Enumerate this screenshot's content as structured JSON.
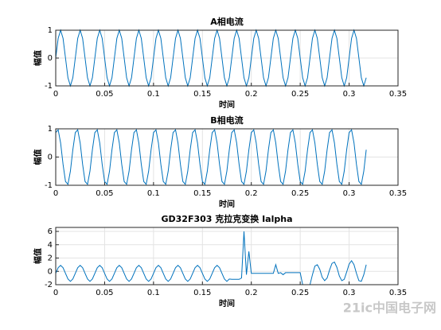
{
  "chart_data": [
    {
      "type": "line",
      "title": "A相电流",
      "xlabel": "时间",
      "ylabel": "幅值",
      "color": "#0072bd",
      "grid": true,
      "xlim": [
        0,
        0.35
      ],
      "xticks": [
        0,
        0.05,
        0.1,
        0.15,
        0.2,
        0.25,
        0.3,
        0.35
      ],
      "ylim": [
        -1,
        1
      ],
      "yticks": [
        -1,
        0,
        1
      ],
      "x": [
        0,
        0.0025,
        0.005,
        0.0075,
        0.01,
        0.0125,
        0.015,
        0.0175,
        0.02,
        0.0225,
        0.025,
        0.0275,
        0.03,
        0.0325,
        0.035,
        0.0375,
        0.04,
        0.0425,
        0.045,
        0.0475,
        0.05,
        0.0525,
        0.055,
        0.0575,
        0.06,
        0.0625,
        0.065,
        0.0675,
        0.07,
        0.0725,
        0.075,
        0.0775,
        0.08,
        0.0825,
        0.085,
        0.0875,
        0.09,
        0.0925,
        0.095,
        0.0975,
        0.1,
        0.1025,
        0.105,
        0.1075,
        0.11,
        0.1125,
        0.115,
        0.1175,
        0.12,
        0.1225,
        0.125,
        0.1275,
        0.13,
        0.1325,
        0.135,
        0.1375,
        0.14,
        0.1425,
        0.145,
        0.1475,
        0.15,
        0.1525,
        0.155,
        0.1575,
        0.16,
        0.1625,
        0.165,
        0.1675,
        0.17,
        0.1725,
        0.175,
        0.1775,
        0.18,
        0.1825,
        0.185,
        0.1875,
        0.19,
        0.1925,
        0.195,
        0.1975,
        0.2,
        0.2025,
        0.205,
        0.2075,
        0.21,
        0.2125,
        0.215,
        0.2175,
        0.22,
        0.2225,
        0.225,
        0.2275,
        0.23,
        0.2325,
        0.235,
        0.2375,
        0.24,
        0.2425,
        0.245,
        0.2475,
        0.25,
        0.2525,
        0.255,
        0.2575,
        0.26,
        0.2625,
        0.265,
        0.2675,
        0.27,
        0.2725,
        0.275,
        0.2775,
        0.28,
        0.2825,
        0.285,
        0.2875,
        0.29,
        0.2925,
        0.295,
        0.2975,
        0.3,
        0.3025,
        0.305,
        0.3075,
        0.31,
        0.3125,
        0.315,
        0.3175
      ],
      "values": [
        0,
        0.707,
        1,
        0.707,
        0,
        -0.707,
        -1,
        -0.707,
        0,
        0.707,
        1,
        0.707,
        0,
        -0.707,
        -1,
        -0.707,
        0,
        0.707,
        1,
        0.707,
        0,
        -0.707,
        -1,
        -0.707,
        0,
        0.707,
        1,
        0.707,
        0,
        -0.707,
        -1,
        -0.707,
        0,
        0.707,
        1,
        0.707,
        0,
        -0.707,
        -1,
        -0.707,
        0,
        0.707,
        1,
        0.707,
        0,
        -0.707,
        -1,
        -0.707,
        0,
        0.707,
        1,
        0.707,
        0,
        -0.707,
        -1,
        -0.707,
        0,
        0.707,
        1,
        0.707,
        0,
        -0.707,
        -1,
        -0.707,
        0,
        0.707,
        1,
        0.707,
        0,
        -0.707,
        -1,
        -0.707,
        0,
        0.707,
        1,
        0.707,
        0,
        -0.707,
        -1,
        -0.707,
        0,
        0.707,
        1,
        0.707,
        0,
        -0.707,
        -1,
        -0.707,
        0,
        0.707,
        1,
        0.707,
        0,
        -0.707,
        -1,
        -0.707,
        0,
        0.707,
        1,
        0.707,
        0,
        -0.707,
        -1,
        -0.707,
        0,
        0.707,
        1,
        0.707,
        0,
        -0.707,
        -1,
        -0.707,
        0,
        0.707,
        1,
        0.707,
        0,
        -0.707,
        -1,
        -0.707,
        0,
        0.707,
        1,
        0.707,
        0,
        -0.707,
        -1,
        -0.707
      ]
    },
    {
      "type": "line",
      "title": "B相电流",
      "xlabel": "时间",
      "ylabel": "幅值",
      "color": "#0072bd",
      "grid": true,
      "xlim": [
        0,
        0.35
      ],
      "xticks": [
        0,
        0.05,
        0.1,
        0.15,
        0.2,
        0.25,
        0.3,
        0.35
      ],
      "ylim": [
        -1,
        1
      ],
      "yticks": [
        -1,
        0,
        1
      ],
      "x": [
        0,
        0.0025,
        0.005,
        0.0075,
        0.01,
        0.0125,
        0.015,
        0.0175,
        0.02,
        0.0225,
        0.025,
        0.0275,
        0.03,
        0.0325,
        0.035,
        0.0375,
        0.04,
        0.0425,
        0.045,
        0.0475,
        0.05,
        0.0525,
        0.055,
        0.0575,
        0.06,
        0.0625,
        0.065,
        0.0675,
        0.07,
        0.0725,
        0.075,
        0.0775,
        0.08,
        0.0825,
        0.085,
        0.0875,
        0.09,
        0.0925,
        0.095,
        0.0975,
        0.1,
        0.1025,
        0.105,
        0.1075,
        0.11,
        0.1125,
        0.115,
        0.1175,
        0.12,
        0.1225,
        0.125,
        0.1275,
        0.13,
        0.1325,
        0.135,
        0.1375,
        0.14,
        0.1425,
        0.145,
        0.1475,
        0.15,
        0.1525,
        0.155,
        0.1575,
        0.16,
        0.1625,
        0.165,
        0.1675,
        0.17,
        0.1725,
        0.175,
        0.1775,
        0.18,
        0.1825,
        0.185,
        0.1875,
        0.19,
        0.1925,
        0.195,
        0.1975,
        0.2,
        0.2025,
        0.205,
        0.2075,
        0.21,
        0.2125,
        0.215,
        0.2175,
        0.22,
        0.2225,
        0.225,
        0.2275,
        0.23,
        0.2325,
        0.235,
        0.2375,
        0.24,
        0.2425,
        0.245,
        0.2475,
        0.25,
        0.2525,
        0.255,
        0.2575,
        0.26,
        0.2625,
        0.265,
        0.2675,
        0.27,
        0.2725,
        0.275,
        0.2775,
        0.28,
        0.2825,
        0.285,
        0.2875,
        0.29,
        0.2925,
        0.295,
        0.2975,
        0.3,
        0.3025,
        0.305,
        0.3075,
        0.31,
        0.3125,
        0.315,
        0.3175
      ],
      "values": [
        0.866,
        0.966,
        0.5,
        -0.259,
        -0.866,
        -0.966,
        -0.5,
        0.259,
        0.866,
        0.966,
        0.5,
        -0.259,
        -0.866,
        -0.966,
        -0.5,
        0.259,
        0.866,
        0.966,
        0.5,
        -0.259,
        -0.866,
        -0.966,
        -0.5,
        0.259,
        0.866,
        0.966,
        0.5,
        -0.259,
        -0.866,
        -0.966,
        -0.5,
        0.259,
        0.866,
        0.966,
        0.5,
        -0.259,
        -0.866,
        -0.966,
        -0.5,
        0.259,
        0.866,
        0.966,
        0.5,
        -0.259,
        -0.866,
        -0.966,
        -0.5,
        0.259,
        0.866,
        0.966,
        0.5,
        -0.259,
        -0.866,
        -0.966,
        -0.5,
        0.259,
        0.866,
        0.966,
        0.5,
        -0.259,
        -0.866,
        -0.966,
        -0.5,
        0.259,
        0.866,
        0.966,
        0.5,
        -0.259,
        -0.866,
        -0.966,
        -0.5,
        0.259,
        0.866,
        0.966,
        0.5,
        -0.259,
        -0.866,
        -0.966,
        -0.5,
        0.259,
        0.866,
        0.966,
        0.5,
        -0.259,
        -0.866,
        -0.966,
        -0.5,
        0.259,
        0.866,
        0.966,
        0.5,
        -0.259,
        -0.866,
        -0.966,
        -0.5,
        0.259,
        0.866,
        0.966,
        0.5,
        -0.259,
        -0.866,
        -0.966,
        -0.5,
        0.259,
        0.866,
        0.966,
        0.5,
        -0.259,
        -0.866,
        -0.966,
        -0.5,
        0.259,
        0.866,
        0.966,
        0.5,
        -0.259,
        -0.866,
        -0.966,
        -0.5,
        0.259,
        0.866,
        0.966,
        0.5,
        -0.259,
        -0.866,
        -0.966,
        -0.5,
        0.259
      ]
    },
    {
      "type": "line",
      "title": "GD32F303 克拉克变换 Ialpha",
      "xlabel": "时间",
      "ylabel": "幅值",
      "color": "#0072bd",
      "grid": true,
      "xlim": [
        0,
        0.35
      ],
      "xticks": [
        0,
        0.05,
        0.1,
        0.15,
        0.2,
        0.25,
        0.3,
        0.35
      ],
      "ylim": [
        -2,
        6.6
      ],
      "yticks": [
        -2,
        0,
        2,
        4,
        6
      ],
      "x": [
        0,
        0.0025,
        0.005,
        0.0075,
        0.01,
        0.0125,
        0.015,
        0.0175,
        0.02,
        0.0225,
        0.025,
        0.0275,
        0.03,
        0.0325,
        0.035,
        0.0375,
        0.04,
        0.0425,
        0.045,
        0.0475,
        0.05,
        0.0525,
        0.055,
        0.0575,
        0.06,
        0.0625,
        0.065,
        0.0675,
        0.07,
        0.0725,
        0.075,
        0.0775,
        0.08,
        0.0825,
        0.085,
        0.0875,
        0.09,
        0.0925,
        0.095,
        0.0975,
        0.1,
        0.1025,
        0.105,
        0.1075,
        0.11,
        0.1125,
        0.115,
        0.1175,
        0.12,
        0.1225,
        0.125,
        0.1275,
        0.13,
        0.1325,
        0.135,
        0.1375,
        0.14,
        0.1425,
        0.145,
        0.1475,
        0.15,
        0.1525,
        0.155,
        0.1575,
        0.16,
        0.1625,
        0.165,
        0.1675,
        0.17,
        0.1725,
        0.175,
        0.1775,
        0.18,
        0.1825,
        0.185,
        0.1875,
        0.19,
        0.1925,
        0.195,
        0.1975,
        0.2,
        0.2025,
        0.205,
        0.2075,
        0.21,
        0.2125,
        0.215,
        0.2175,
        0.22,
        0.2225,
        0.225,
        0.2275,
        0.23,
        0.2325,
        0.235,
        0.2375,
        0.24,
        0.2425,
        0.245,
        0.2475,
        0.25,
        0.2525,
        0.255,
        0.2575,
        0.26,
        0.2625,
        0.265,
        0.2675,
        0.27,
        0.2725,
        0.275,
        0.2775,
        0.28,
        0.2825,
        0.285,
        0.2875,
        0.29,
        0.2925,
        0.295,
        0.2975,
        0.3,
        0.3025,
        0.305,
        0.3075,
        0.31,
        0.3125,
        0.315,
        0.3175
      ],
      "values": [
        -0.3,
        0.55,
        0.9,
        0.55,
        -0.3,
        -1.15,
        -1.5,
        -1.15,
        -0.3,
        0.55,
        0.9,
        0.55,
        -0.3,
        -1.15,
        -1.5,
        -1.15,
        -0.3,
        0.55,
        0.9,
        0.55,
        -0.3,
        -1.15,
        -1.5,
        -1.15,
        -0.3,
        0.55,
        0.9,
        0.55,
        -0.3,
        -1.15,
        -1.5,
        -1.15,
        -0.3,
        0.55,
        0.9,
        0.55,
        -0.3,
        -1.15,
        -1.5,
        -1.15,
        -0.3,
        0.55,
        0.9,
        0.55,
        -0.3,
        -1.15,
        -1.5,
        -1.15,
        -0.3,
        0.55,
        0.9,
        0.55,
        -0.3,
        -1.15,
        -1.5,
        -1.15,
        -0.3,
        0.55,
        0.9,
        0.55,
        -0.3,
        -1.15,
        -1.5,
        -1.15,
        -0.3,
        0.55,
        0.9,
        0.55,
        -0.3,
        -1.15,
        -1.5,
        -1.15,
        -1.2,
        -1.2,
        -1.2,
        -1.2,
        -1.0,
        6.0,
        -0.5,
        3.0,
        -0.3,
        -0.3,
        -0.3,
        -0.3,
        -0.3,
        -0.3,
        -0.3,
        -0.3,
        -0.3,
        -0.3,
        1.0,
        -0.3,
        -0.2,
        -0.5,
        -0.2,
        -0.2,
        -0.2,
        -0.2,
        -0.2,
        -0.2,
        -0.2,
        -2,
        -2,
        -2,
        -2,
        -0.5,
        0.8,
        1.0,
        0.3,
        -0.9,
        -1.4,
        -1.0,
        0.2,
        1.2,
        1.4,
        0.6,
        -0.7,
        -1.4,
        -1.2,
        -0.1,
        1.1,
        1.6,
        1.0,
        -0.3,
        -1.4,
        -1.5,
        -0.5,
        1.0
      ]
    }
  ],
  "watermark": "21ic中国电子网"
}
